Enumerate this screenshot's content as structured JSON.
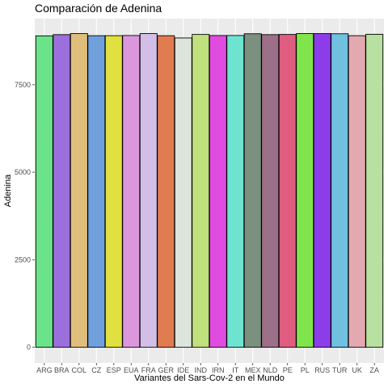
{
  "chart_data": {
    "type": "bar",
    "title": "Comparación de Adenina",
    "xlabel": "Variantes del Sars-Cov-2 en el Mundo",
    "ylabel": "Adenina",
    "categories": [
      "ARG",
      "BRA",
      "COL",
      "CZ",
      "ESP",
      "EUA",
      "FRA",
      "GER",
      "IDE",
      "IND",
      "IRN",
      "IT",
      "MEX",
      "NLD",
      "PE",
      "PL",
      "RUS",
      "TUR",
      "UK",
      "ZA"
    ],
    "values": [
      8895,
      8930,
      8960,
      8900,
      8900,
      8905,
      8960,
      8900,
      8835,
      8935,
      8905,
      8905,
      8955,
      8930,
      8935,
      8960,
      8960,
      8955,
      8900,
      8940
    ],
    "colors": [
      "#6be38a",
      "#9b6fdc",
      "#dfbe7c",
      "#6fa0dc",
      "#e0e040",
      "#dc96dc",
      "#d2bee6",
      "#e07c50",
      "#dce4dc",
      "#c0e07c",
      "#e04ce0",
      "#6ee4d0",
      "#7c9080",
      "#9c7088",
      "#e05c80",
      "#80e44c",
      "#8c3ce8",
      "#70c0e0",
      "#e4a8b0",
      "#b8e0a0"
    ],
    "yticks": [
      0,
      2500,
      5000,
      7500
    ],
    "ylim": [
      -447,
      9388
    ],
    "grid": true,
    "legend": "none"
  }
}
